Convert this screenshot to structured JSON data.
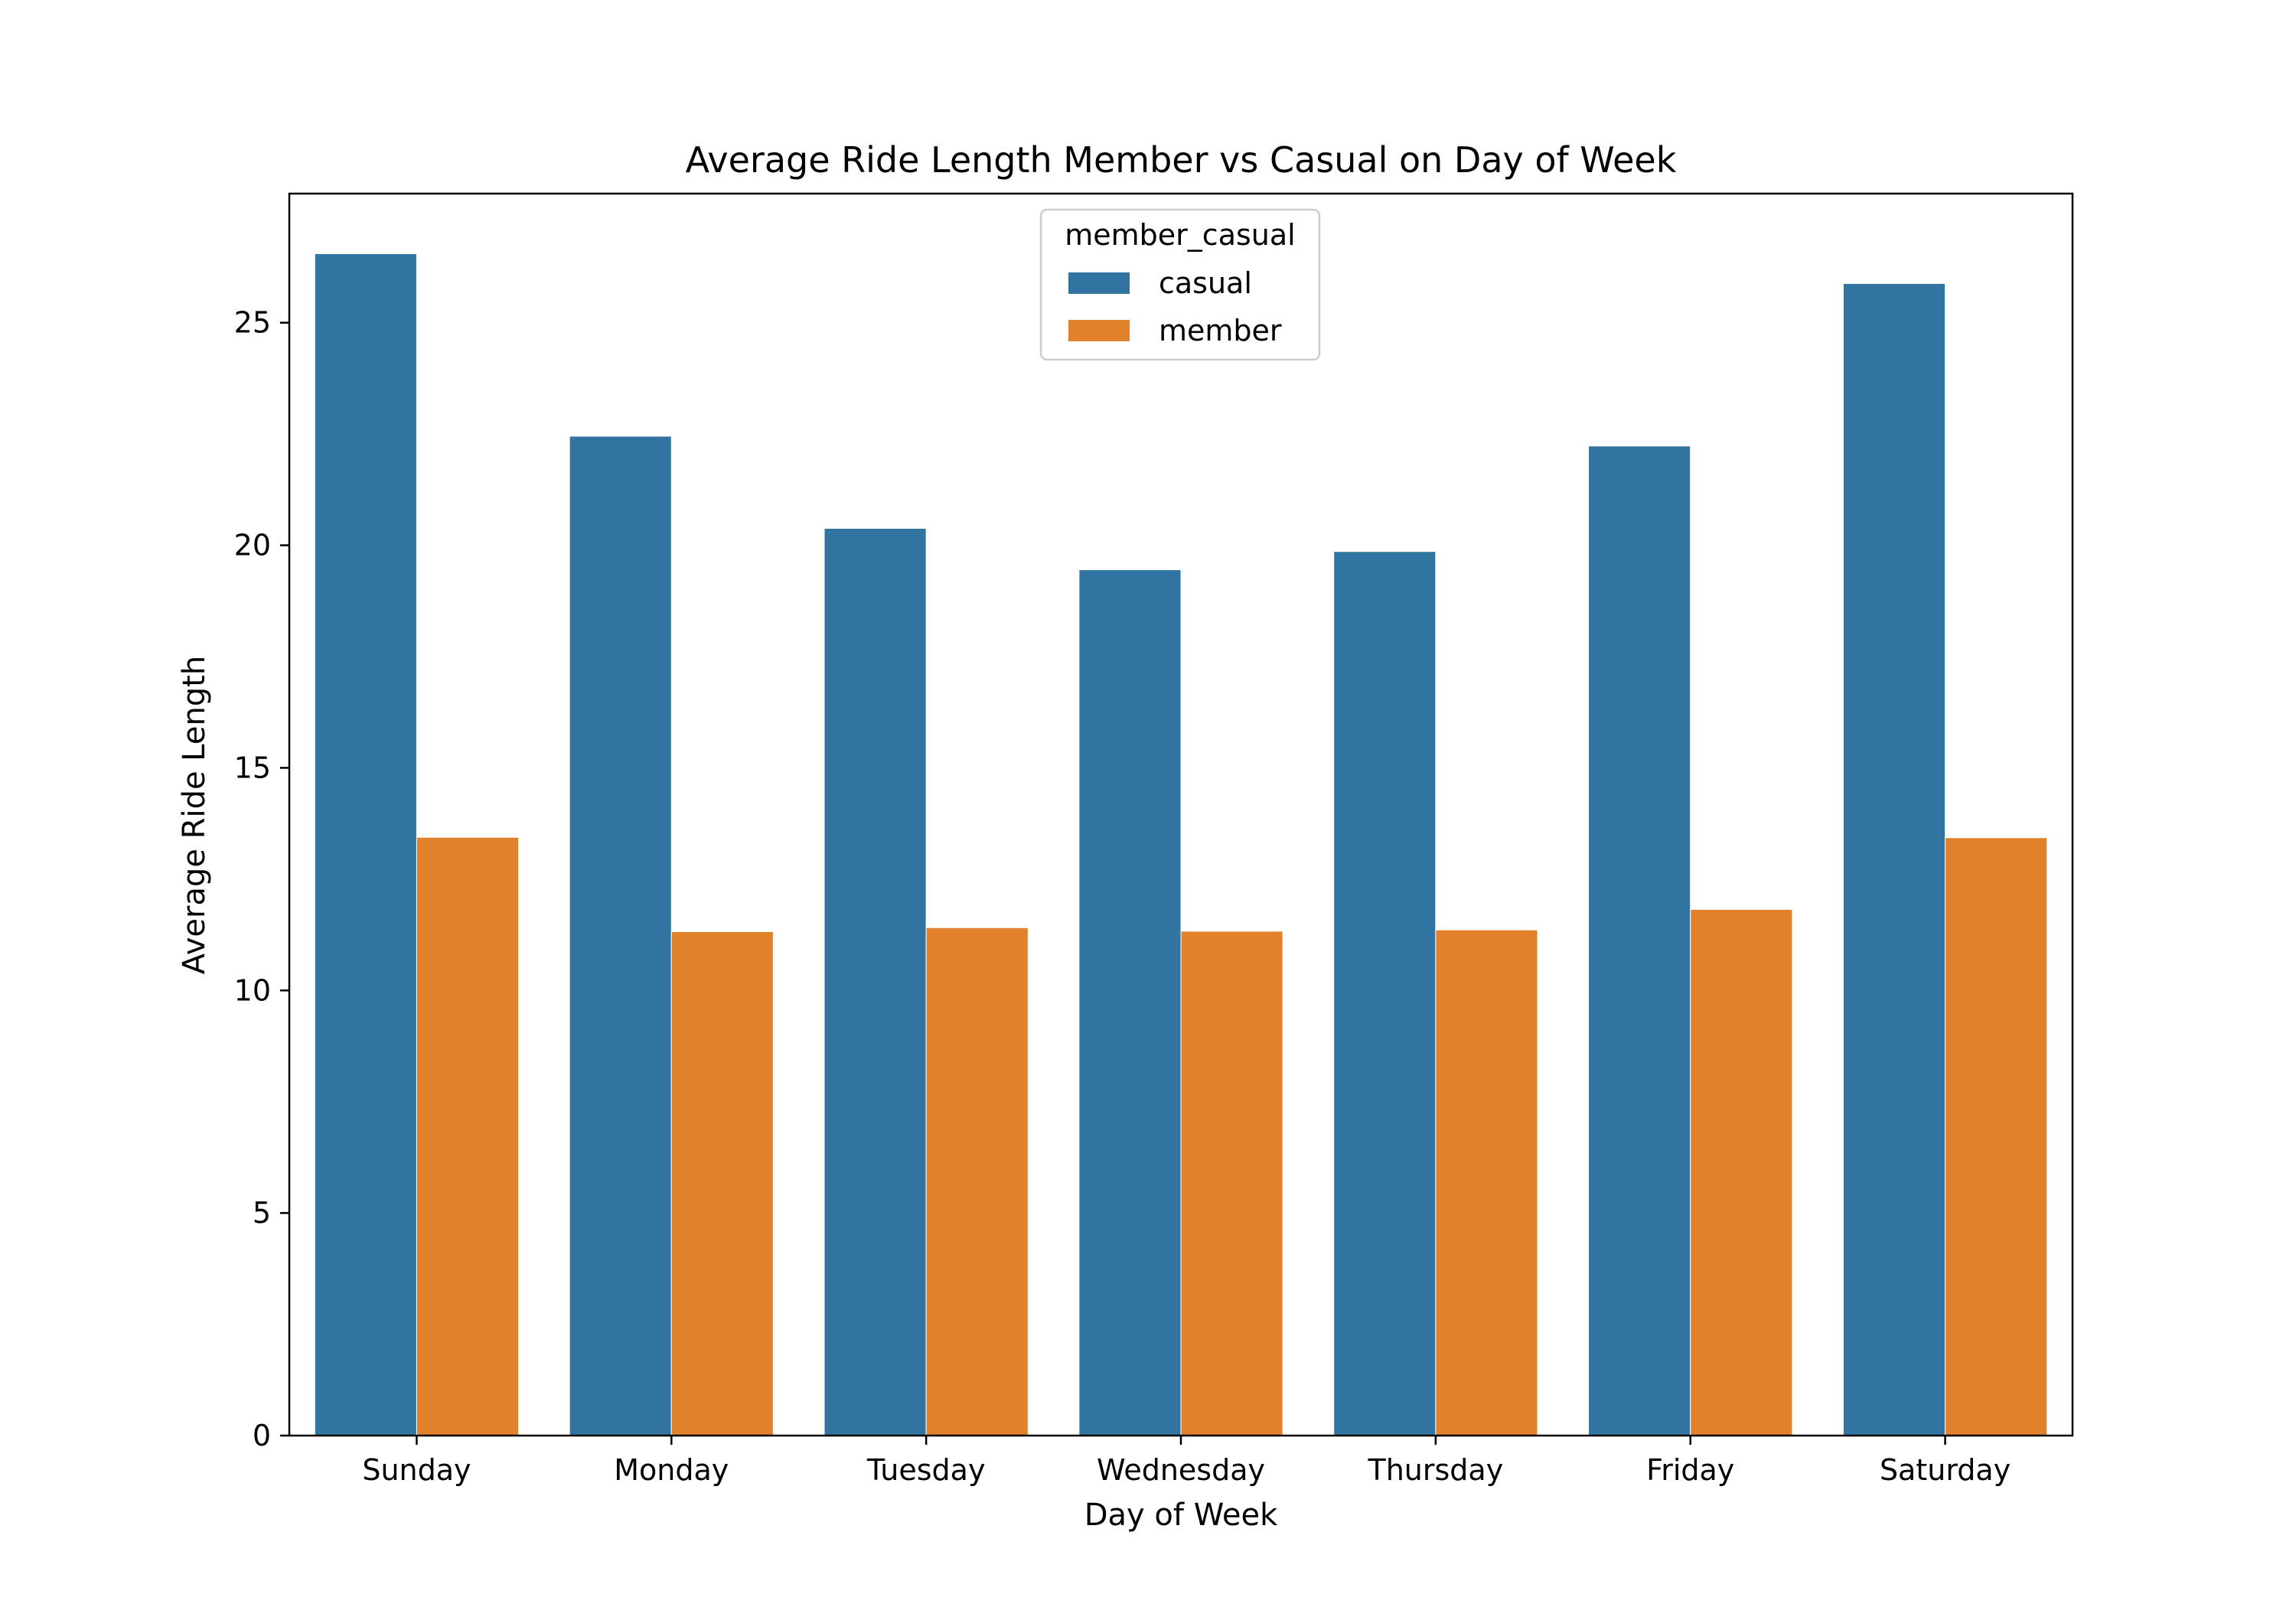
{
  "chart_data": {
    "type": "bar",
    "title": "Average Ride Length Member vs Casual on Day of Week",
    "xlabel": "Day of Week",
    "ylabel": "Average Ride Length",
    "categories": [
      "Sunday",
      "Monday",
      "Tuesday",
      "Wednesday",
      "Thursday",
      "Friday",
      "Saturday"
    ],
    "series": [
      {
        "name": "casual",
        "color": "#3274a1",
        "values": [
          26.55,
          22.45,
          20.38,
          19.45,
          19.86,
          22.23,
          25.88
        ]
      },
      {
        "name": "member",
        "color": "#e1812c",
        "values": [
          13.44,
          11.32,
          11.41,
          11.33,
          11.36,
          11.82,
          13.43
        ]
      }
    ],
    "ylim": [
      0,
      27.9
    ],
    "yticks": [
      0,
      5,
      10,
      15,
      20,
      25
    ],
    "legend": {
      "title": "member_casual",
      "position": "top-center"
    },
    "grid": false
  }
}
